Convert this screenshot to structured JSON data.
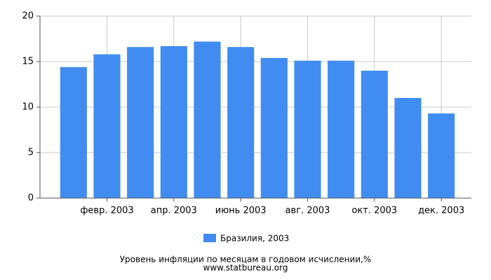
{
  "chart_data": {
    "type": "bar",
    "title": "Уровень инфляции по месяцам в годовом исчислении,%",
    "subtitle": "www.statbureau.org",
    "categories": [
      null,
      "февр. 2003",
      null,
      "апр. 2003",
      null,
      "июнь 2003",
      null,
      "авг. 2003",
      null,
      "окт. 2003",
      null,
      "дек. 2003"
    ],
    "series": [
      {
        "name": "Бразилия, 2003",
        "color": "#418cf0",
        "values": [
          14.4,
          15.8,
          16.6,
          16.7,
          17.2,
          16.6,
          15.4,
          15.1,
          15.1,
          14.0,
          11.0,
          9.3
        ]
      }
    ],
    "ylim": [
      0,
      20
    ],
    "yticks": [
      0,
      5,
      10,
      15,
      20
    ],
    "grid": true,
    "legend": "bottom"
  }
}
